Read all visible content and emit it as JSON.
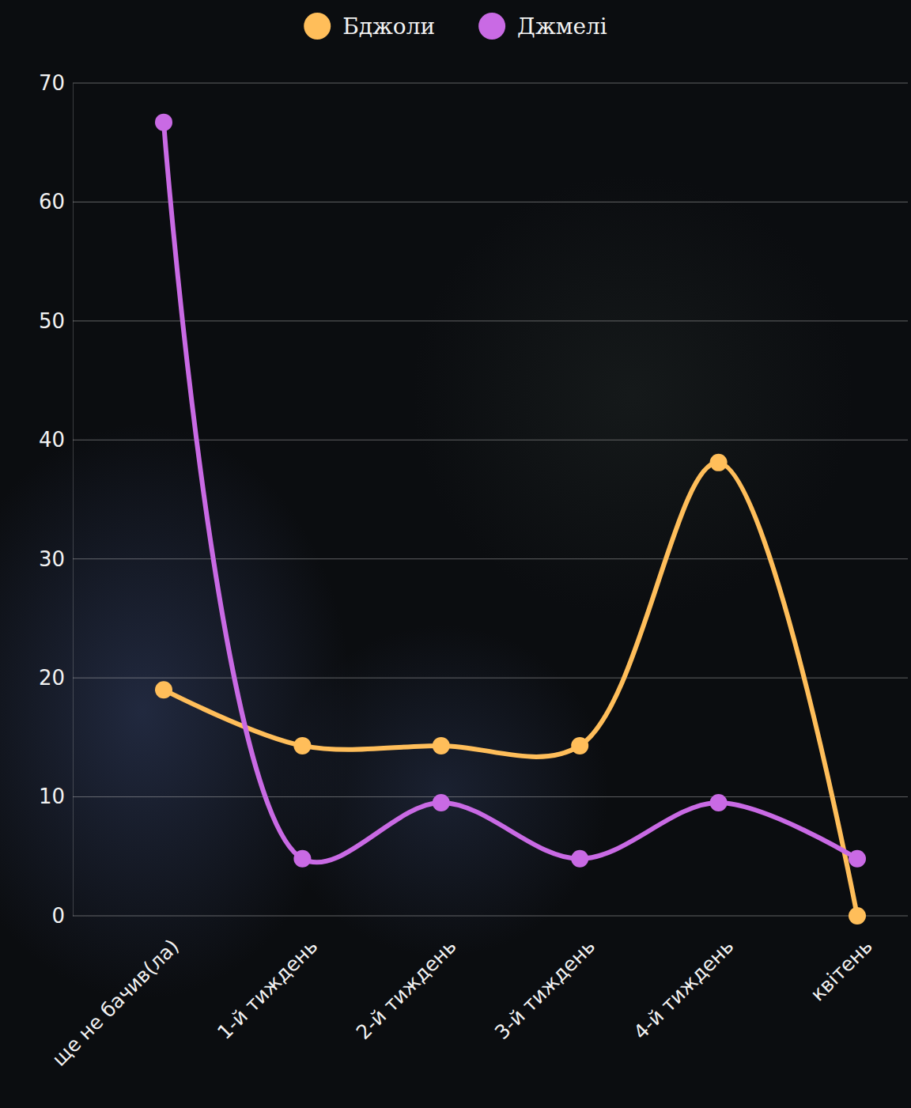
{
  "chart_data": {
    "type": "line",
    "categories": [
      "ще не бачив(ла)",
      "1-й тиждень",
      "2-й тиждень",
      "3-й тиждень",
      "4-й тиждень",
      "квітень"
    ],
    "series": [
      {
        "name": "Бджоли",
        "color": "#ffbe5a",
        "marker": "circle",
        "values": [
          19,
          14.3,
          14.3,
          14.3,
          38.1,
          0
        ]
      },
      {
        "name": "Джмелі",
        "color": "#c96ae4",
        "marker": "circle",
        "values": [
          66.7,
          4.8,
          9.5,
          4.8,
          9.5,
          4.8
        ]
      }
    ],
    "ylim": [
      0,
      70
    ],
    "yticks": [
      0,
      10,
      20,
      30,
      40,
      50,
      60,
      70
    ],
    "grid": true,
    "legend": "top"
  }
}
